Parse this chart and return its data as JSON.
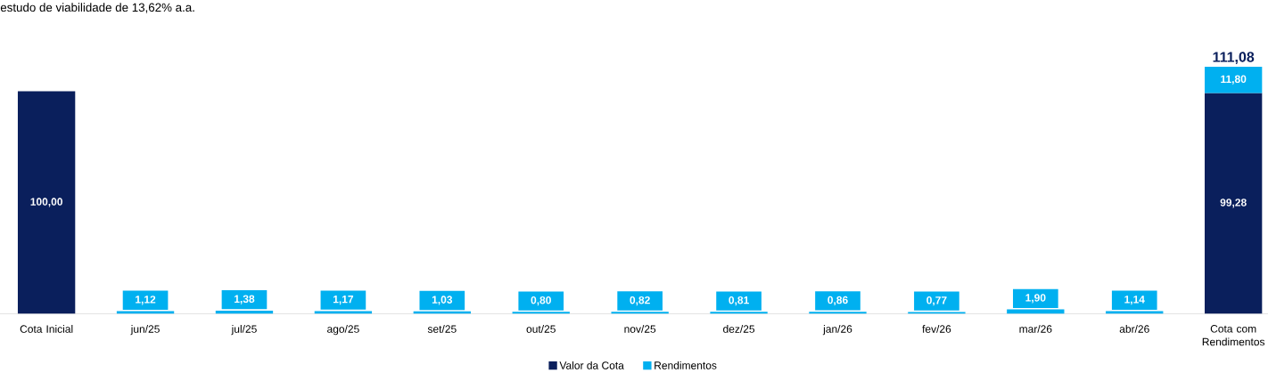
{
  "chart_data": {
    "type": "bar",
    "stacked": true,
    "legend": "bottom",
    "annotations": [
      "estudo de viabilidade de 13,62% a.a."
    ],
    "categories": [
      "Cota Inicial",
      "jun/25",
      "jul/25",
      "ago/25",
      "set/25",
      "out/25",
      "nov/25",
      "dez/25",
      "jan/26",
      "fev/26",
      "mar/26",
      "abr/26",
      "Cota com Rendimentos"
    ],
    "series": [
      {
        "name": "Valor da Cota",
        "color": "#0a1f5c",
        "values": [
          100,
          null,
          null,
          null,
          null,
          null,
          null,
          null,
          null,
          null,
          null,
          null,
          99.28
        ],
        "value_labels": [
          "100,00",
          null,
          null,
          null,
          null,
          null,
          null,
          null,
          null,
          null,
          null,
          null,
          "99,28"
        ]
      },
      {
        "name": "Rendimentos",
        "color": "#00b0f0",
        "values": [
          null,
          1.12,
          1.38,
          1.17,
          1.03,
          0.8,
          0.82,
          0.81,
          0.86,
          0.77,
          1.9,
          1.14,
          11.8
        ],
        "value_labels": [
          null,
          "1,12",
          "1,38",
          "1,17",
          "1,03",
          "0,80",
          "0,82",
          "0,81",
          "0,86",
          "0,77",
          "1,90",
          "1,14",
          "11,80"
        ]
      }
    ],
    "totals": [
      null,
      null,
      null,
      null,
      null,
      null,
      null,
      null,
      null,
      null,
      null,
      null,
      "111,08"
    ]
  }
}
